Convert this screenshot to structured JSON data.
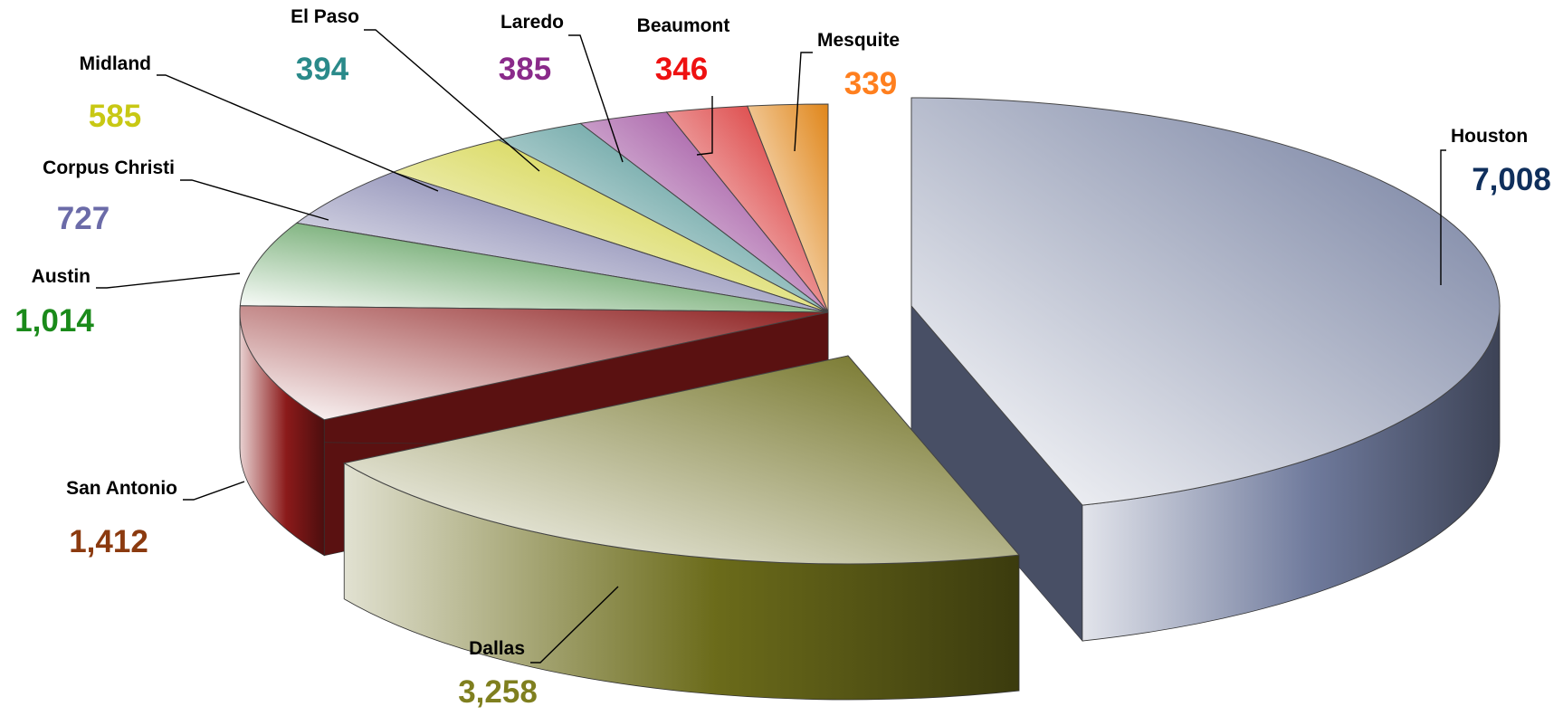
{
  "chart_data": {
    "type": "pie",
    "style": "3d-exploded",
    "title": "",
    "slices": [
      {
        "label": "Houston",
        "value": 7008,
        "value_text": "7,008",
        "color": "#6f7a9c",
        "label_color": "#0f2f5c"
      },
      {
        "label": "Dallas",
        "value": 3258,
        "value_text": "3,258",
        "color": "#6b6b1a",
        "label_color": "#7f7f1f"
      },
      {
        "label": "San Antonio",
        "value": 1412,
        "value_text": "1,412",
        "color": "#8b1a1a",
        "label_color": "#8b3a0f"
      },
      {
        "label": "Austin",
        "value": 1014,
        "value_text": "1,014",
        "color": "#1f7a1f",
        "label_color": "#1a8a1a"
      },
      {
        "label": "Corpus Christi",
        "value": 727,
        "value_text": "727",
        "color": "#5a5a95",
        "label_color": "#6b6ba8"
      },
      {
        "label": "Midland",
        "value": 585,
        "value_text": "585",
        "color": "#c8c814",
        "label_color": "#c8c814"
      },
      {
        "label": "El Paso",
        "value": 394,
        "value_text": "394",
        "color": "#2e8080",
        "label_color": "#2a8a8a"
      },
      {
        "label": "Laredo",
        "value": 385,
        "value_text": "385",
        "color": "#8a2a8a",
        "label_color": "#8a2a8a"
      },
      {
        "label": "Beaumont",
        "value": 346,
        "value_text": "346",
        "color": "#d41a1a",
        "label_color": "#ee1111"
      },
      {
        "label": "Mesquite",
        "value": 339,
        "value_text": "339",
        "color": "#e0861a",
        "label_color": "#ff7f1e"
      }
    ]
  }
}
